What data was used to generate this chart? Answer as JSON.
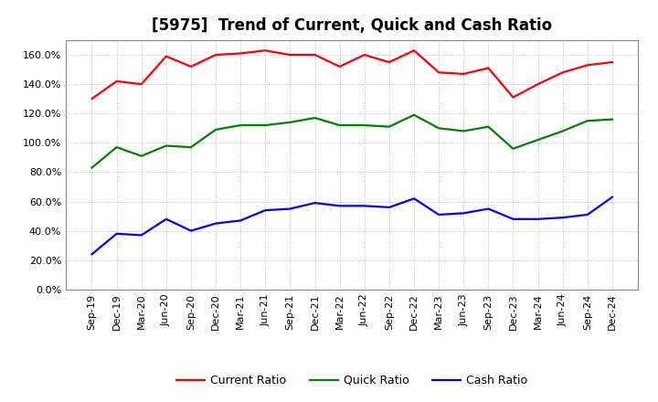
{
  "title": "[5975]  Trend of Current, Quick and Cash Ratio",
  "labels": [
    "Sep-19",
    "Dec-19",
    "Mar-20",
    "Jun-20",
    "Sep-20",
    "Dec-20",
    "Mar-21",
    "Jun-21",
    "Sep-21",
    "Dec-21",
    "Mar-22",
    "Jun-22",
    "Sep-22",
    "Dec-22",
    "Mar-23",
    "Jun-23",
    "Sep-23",
    "Dec-23",
    "Mar-24",
    "Jun-24",
    "Sep-24",
    "Dec-24"
  ],
  "current_ratio": [
    1.3,
    1.42,
    1.4,
    1.59,
    1.52,
    1.6,
    1.61,
    1.63,
    1.6,
    1.6,
    1.52,
    1.6,
    1.55,
    1.63,
    1.48,
    1.47,
    1.51,
    1.31,
    1.4,
    1.48,
    1.53,
    1.55
  ],
  "quick_ratio": [
    0.83,
    0.97,
    0.91,
    0.98,
    0.97,
    1.09,
    1.12,
    1.12,
    1.14,
    1.17,
    1.12,
    1.12,
    1.11,
    1.19,
    1.1,
    1.08,
    1.11,
    0.96,
    1.02,
    1.08,
    1.15,
    1.16
  ],
  "cash_ratio": [
    0.24,
    0.38,
    0.37,
    0.48,
    0.4,
    0.45,
    0.47,
    0.54,
    0.55,
    0.59,
    0.57,
    0.57,
    0.56,
    0.62,
    0.51,
    0.52,
    0.55,
    0.48,
    0.48,
    0.49,
    0.51,
    0.63
  ],
  "current_color": "#ff0000",
  "quick_color": "#008000",
  "cash_color": "#0000ff",
  "ylim": [
    0.0,
    1.7
  ],
  "yticks": [
    0.0,
    0.2,
    0.4,
    0.6,
    0.8,
    1.0,
    1.2,
    1.4,
    1.6
  ],
  "background_color": "#ffffff",
  "plot_bg_color": "#ffffff",
  "grid_color": "#bbbbbb",
  "title_fontsize": 12,
  "axis_fontsize": 8,
  "legend_fontsize": 9,
  "line_width": 1.6
}
